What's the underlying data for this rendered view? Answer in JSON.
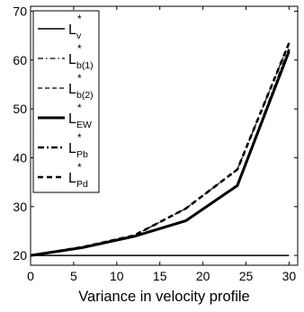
{
  "chart_data": {
    "type": "line",
    "title": "",
    "xlabel": "Variance in velocity profile",
    "ylabel": "",
    "xlim": [
      0,
      31
    ],
    "ylim": [
      18,
      71
    ],
    "x": [
      0,
      6,
      12,
      18,
      24,
      30
    ],
    "xticks": [
      0,
      5,
      10,
      15,
      20,
      25,
      30
    ],
    "yticks": [
      20,
      30,
      40,
      50,
      60,
      70
    ],
    "grid": false,
    "legend_position": "top-left",
    "series": [
      {
        "name": "L*_v",
        "label_main": "L",
        "label_sub": "v",
        "style": "solid",
        "width": 1.5,
        "color": "#000000",
        "values": [
          20,
          20,
          20,
          20,
          20,
          20
        ]
      },
      {
        "name": "L*_b(1)",
        "label_main": "L",
        "label_sub": "b(1)",
        "style": "dashdot",
        "width": 1.2,
        "color": "#000000",
        "values": [
          20,
          21.6,
          23.9,
          27.1,
          34.3,
          61.8
        ]
      },
      {
        "name": "L*_b(2)",
        "label_main": "L",
        "label_sub": "b(2)",
        "style": "dashed",
        "width": 1.2,
        "color": "#000000",
        "values": [
          20,
          21.7,
          24.1,
          29.6,
          37.6,
          63.5
        ]
      },
      {
        "name": "L*_EW",
        "label_main": "L",
        "label_sub": "EW",
        "style": "solid",
        "width": 3,
        "color": "#000000",
        "values": [
          20,
          21.6,
          23.9,
          27.1,
          34.3,
          61.8
        ]
      },
      {
        "name": "L*_Pb",
        "label_main": "L",
        "label_sub": "Pb",
        "style": "dashdot",
        "width": 2.6,
        "color": "#000000",
        "values": [
          20,
          21.6,
          23.9,
          27.1,
          34.3,
          62.2
        ]
      },
      {
        "name": "L*_Pd",
        "label_main": "L",
        "label_sub": "Pd",
        "style": "dashed",
        "width": 2.6,
        "color": "#000000",
        "values": [
          20,
          21.7,
          24.1,
          29.6,
          37.6,
          63.5
        ]
      }
    ]
  }
}
